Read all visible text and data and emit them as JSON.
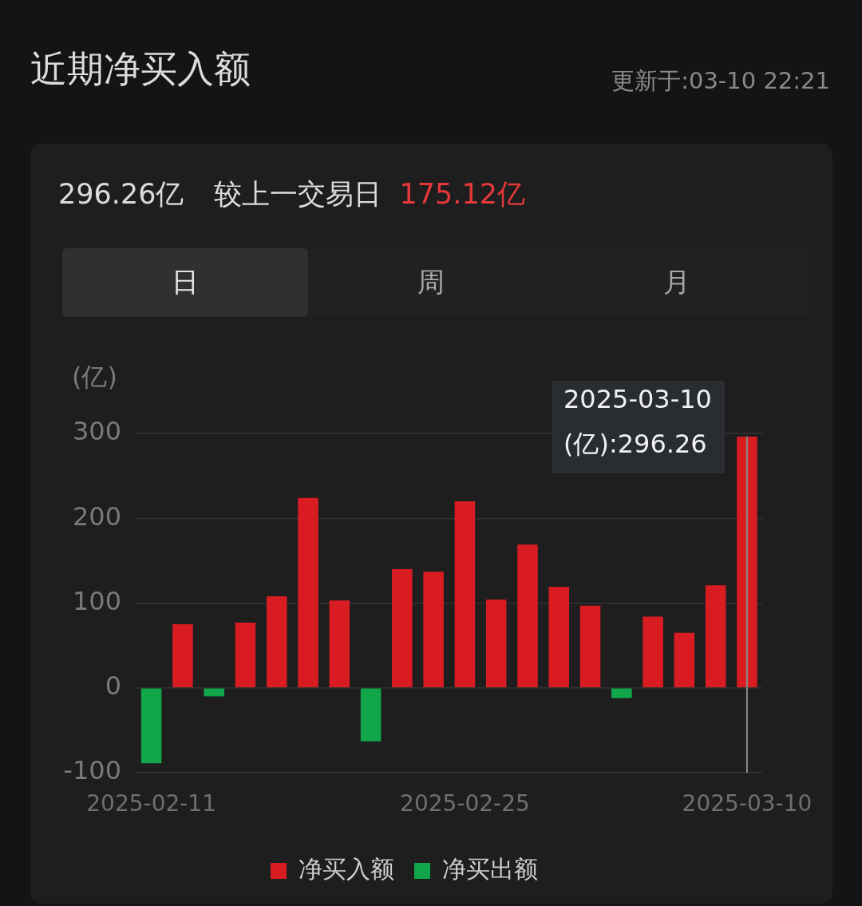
{
  "chart_data": {
    "type": "bar",
    "title": "近期净买入额",
    "subtitle": "更新于:03-10 22:21",
    "ylabel": "(亿)",
    "categories": [
      "2025-02-11",
      null,
      null,
      null,
      null,
      null,
      null,
      null,
      null,
      null,
      "2025-02-25",
      null,
      null,
      null,
      null,
      null,
      null,
      null,
      null,
      "2025-03-10"
    ],
    "series": [
      {
        "name": "净买入额",
        "color": "#d81c22",
        "values": [
          null,
          75,
          null,
          77,
          108,
          224,
          103,
          null,
          140,
          137,
          220,
          104,
          169,
          119,
          97,
          null,
          84,
          65,
          121,
          296.26
        ]
      },
      {
        "name": "净买出额",
        "color": "#12a64b",
        "values": [
          -89,
          null,
          -10,
          null,
          null,
          null,
          null,
          -63,
          null,
          null,
          null,
          null,
          null,
          null,
          null,
          -12,
          null,
          null,
          null,
          null
        ]
      }
    ],
    "stacked": true,
    "ylim": [
      -100,
      300
    ],
    "yticks": [
      -100,
      0,
      100,
      200,
      300
    ],
    "grid": "y",
    "legend": "bottom",
    "annotations": [
      "296.26亿",
      "较上一交易日",
      "175.12亿",
      "日",
      "周",
      "月",
      {
        "text": "(亿):296.26",
        "x": "2025-03-10",
        "y": 296.26
      }
    ]
  }
}
